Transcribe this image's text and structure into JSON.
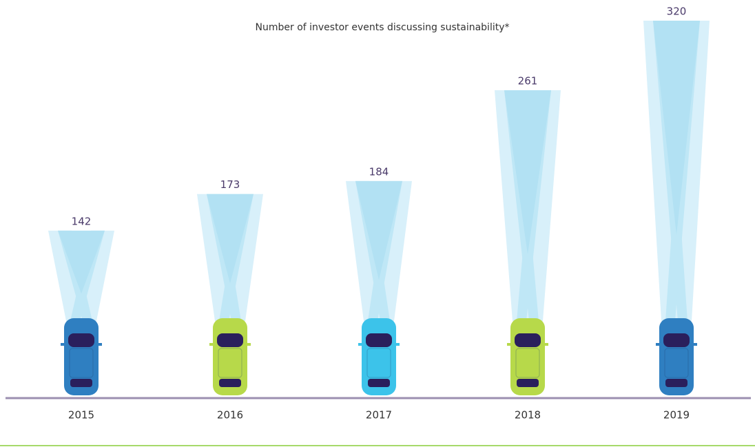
{
  "chart_data": {
    "type": "bar",
    "title": "Number of investor events discussing sustainability*",
    "categories": [
      "2015",
      "2016",
      "2017",
      "2018",
      "2019"
    ],
    "values": [
      142,
      173,
      184,
      261,
      320
    ],
    "colors": [
      "#2f7fc1",
      "#b7d94a",
      "#3cc3ea",
      "#b7d94a",
      "#2f7fc1"
    ]
  }
}
